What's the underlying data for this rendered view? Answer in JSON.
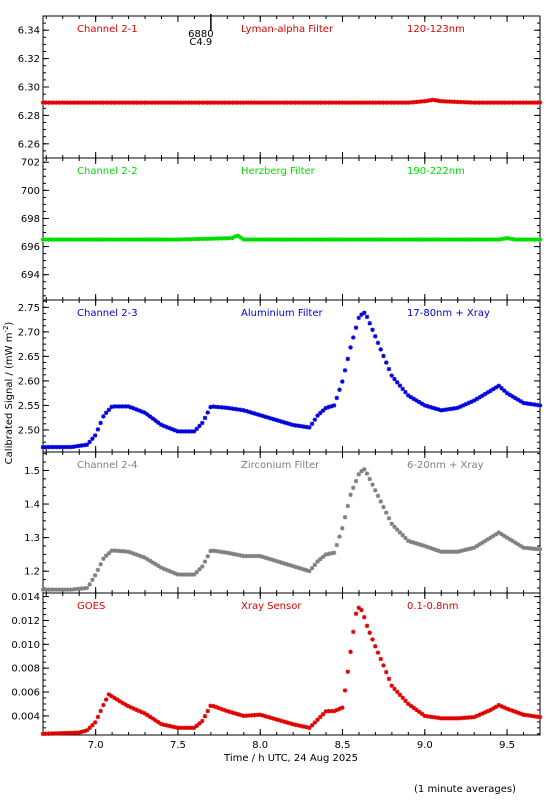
{
  "chart_data": {
    "type": "scatter",
    "xlabel": "Time / h UTC, 24 Aug 2025",
    "ylabel": "Calibrated Signal / (mW m",
    "ylabel_sup": "-2",
    "ylabel_tail": ")",
    "footnote": "(1 minute averages)",
    "xlim": [
      6.68,
      9.7
    ],
    "xticks": [
      7.0,
      7.5,
      8.0,
      8.5,
      9.0,
      9.5
    ],
    "xtick_labels": [
      "7.0",
      "7.5",
      "8.0",
      "8.5",
      "9.0",
      "9.5"
    ],
    "marker_annotation": {
      "x": 7.7,
      "line1": "6880",
      "line2": "C4.9"
    },
    "panels": [
      {
        "channel": "Channel 2-1",
        "filter": "Lyman-alpha Filter",
        "band": "120-123nm",
        "color": "#e00000",
        "ylim": [
          6.25,
          6.35
        ],
        "yticks": [
          6.26,
          6.28,
          6.3,
          6.32,
          6.34
        ],
        "ytick_labels": [
          "6.26",
          "6.28",
          "6.30",
          "6.32",
          "6.34"
        ],
        "series": {
          "x": [
            6.68,
            7.0,
            7.5,
            8.0,
            8.5,
            8.9,
            9.0,
            9.05,
            9.1,
            9.3,
            9.7
          ],
          "y": [
            6.289,
            6.289,
            6.289,
            6.289,
            6.289,
            6.289,
            6.29,
            6.291,
            6.29,
            6.289,
            6.289
          ]
        }
      },
      {
        "channel": "Channel 2-2",
        "filter": "Herzberg Filter",
        "band": "190-222nm",
        "color": "#00dd00",
        "ylim": [
          692.2,
          702.3
        ],
        "yticks": [
          694,
          696,
          698,
          700,
          702
        ],
        "ytick_labels": [
          "694",
          "696",
          "698",
          "700",
          "702"
        ],
        "series": {
          "x": [
            6.68,
            7.5,
            7.83,
            7.86,
            7.9,
            8.5,
            9.45,
            9.5,
            9.55,
            9.7
          ],
          "y": [
            696.5,
            696.5,
            696.6,
            696.8,
            696.5,
            696.5,
            696.5,
            696.6,
            696.5,
            696.5
          ]
        }
      },
      {
        "channel": "Channel 2-3",
        "filter": "Aluminium Filter",
        "band": "17-80nm + Xray",
        "color": "#0000dd",
        "ylim": [
          2.455,
          2.765
        ],
        "yticks": [
          2.5,
          2.55,
          2.6,
          2.65,
          2.7,
          2.75
        ],
        "ytick_labels": [
          "2.50",
          "2.55",
          "2.60",
          "2.65",
          "2.70",
          "2.75"
        ],
        "series": {
          "x": [
            6.68,
            6.85,
            6.95,
            7.0,
            7.05,
            7.1,
            7.2,
            7.3,
            7.4,
            7.5,
            7.6,
            7.65,
            7.7,
            7.8,
            7.9,
            8.0,
            8.1,
            8.2,
            8.3,
            8.35,
            8.4,
            8.45,
            8.5,
            8.55,
            8.6,
            8.63,
            8.65,
            8.7,
            8.75,
            8.8,
            8.9,
            9.0,
            9.1,
            9.2,
            9.3,
            9.4,
            9.45,
            9.5,
            9.6,
            9.7
          ],
          "y": [
            2.465,
            2.465,
            2.47,
            2.49,
            2.53,
            2.548,
            2.548,
            2.535,
            2.51,
            2.497,
            2.497,
            2.515,
            2.548,
            2.545,
            2.54,
            2.53,
            2.52,
            2.51,
            2.505,
            2.53,
            2.545,
            2.55,
            2.6,
            2.67,
            2.73,
            2.74,
            2.73,
            2.69,
            2.65,
            2.61,
            2.57,
            2.55,
            2.54,
            2.545,
            2.56,
            2.58,
            2.59,
            2.575,
            2.555,
            2.55
          ]
        }
      },
      {
        "channel": "Channel 2-4",
        "filter": "Zirconium Filter",
        "band": "6-20nm + Xray",
        "color": "#808080",
        "ylim": [
          1.135,
          1.555
        ],
        "yticks": [
          1.2,
          1.3,
          1.4,
          1.5
        ],
        "ytick_labels": [
          "1.2",
          "1.3",
          "1.4",
          "1.5"
        ],
        "series": {
          "x": [
            6.68,
            6.85,
            6.95,
            7.0,
            7.05,
            7.1,
            7.2,
            7.3,
            7.4,
            7.5,
            7.6,
            7.65,
            7.7,
            7.8,
            7.9,
            8.0,
            8.1,
            8.2,
            8.3,
            8.35,
            8.4,
            8.45,
            8.5,
            8.55,
            8.6,
            8.63,
            8.65,
            8.7,
            8.75,
            8.8,
            8.9,
            9.0,
            9.1,
            9.2,
            9.3,
            9.4,
            9.45,
            9.5,
            9.6,
            9.7
          ],
          "y": [
            1.145,
            1.145,
            1.15,
            1.19,
            1.24,
            1.262,
            1.258,
            1.24,
            1.21,
            1.19,
            1.19,
            1.215,
            1.262,
            1.255,
            1.245,
            1.245,
            1.23,
            1.215,
            1.2,
            1.23,
            1.25,
            1.255,
            1.33,
            1.43,
            1.49,
            1.505,
            1.49,
            1.44,
            1.39,
            1.34,
            1.29,
            1.275,
            1.258,
            1.258,
            1.27,
            1.3,
            1.315,
            1.3,
            1.27,
            1.265
          ]
        }
      },
      {
        "channel": "GOES",
        "filter": "Xray Sensor",
        "band": "0.1-0.8nm",
        "color": "#e00000",
        "ylim": [
          0.0024,
          0.0143
        ],
        "yticks": [
          0.004,
          0.006,
          0.008,
          0.01,
          0.012,
          0.014
        ],
        "ytick_labels": [
          "0.004",
          "0.006",
          "0.008",
          "0.010",
          "0.012",
          "0.014"
        ],
        "series": {
          "x": [
            6.68,
            6.9,
            6.95,
            7.0,
            7.05,
            7.08,
            7.15,
            7.2,
            7.3,
            7.4,
            7.5,
            7.6,
            7.65,
            7.7,
            7.8,
            7.9,
            8.0,
            8.1,
            8.2,
            8.3,
            8.35,
            8.4,
            8.45,
            8.5,
            8.53,
            8.56,
            8.58,
            8.6,
            8.62,
            8.65,
            8.7,
            8.75,
            8.8,
            8.9,
            9.0,
            9.1,
            9.2,
            9.3,
            9.4,
            9.45,
            9.5,
            9.6,
            9.7
          ],
          "y": [
            0.0025,
            0.0026,
            0.0028,
            0.0035,
            0.005,
            0.0058,
            0.0052,
            0.0048,
            0.0042,
            0.0033,
            0.003,
            0.003,
            0.0036,
            0.0049,
            0.0044,
            0.004,
            0.0041,
            0.0037,
            0.0033,
            0.003,
            0.0037,
            0.0044,
            0.0044,
            0.0047,
            0.0075,
            0.0105,
            0.0125,
            0.0131,
            0.0128,
            0.0115,
            0.0098,
            0.0082,
            0.0065,
            0.005,
            0.004,
            0.0038,
            0.0038,
            0.0039,
            0.0045,
            0.0049,
            0.0046,
            0.0041,
            0.0039
          ]
        }
      }
    ]
  }
}
